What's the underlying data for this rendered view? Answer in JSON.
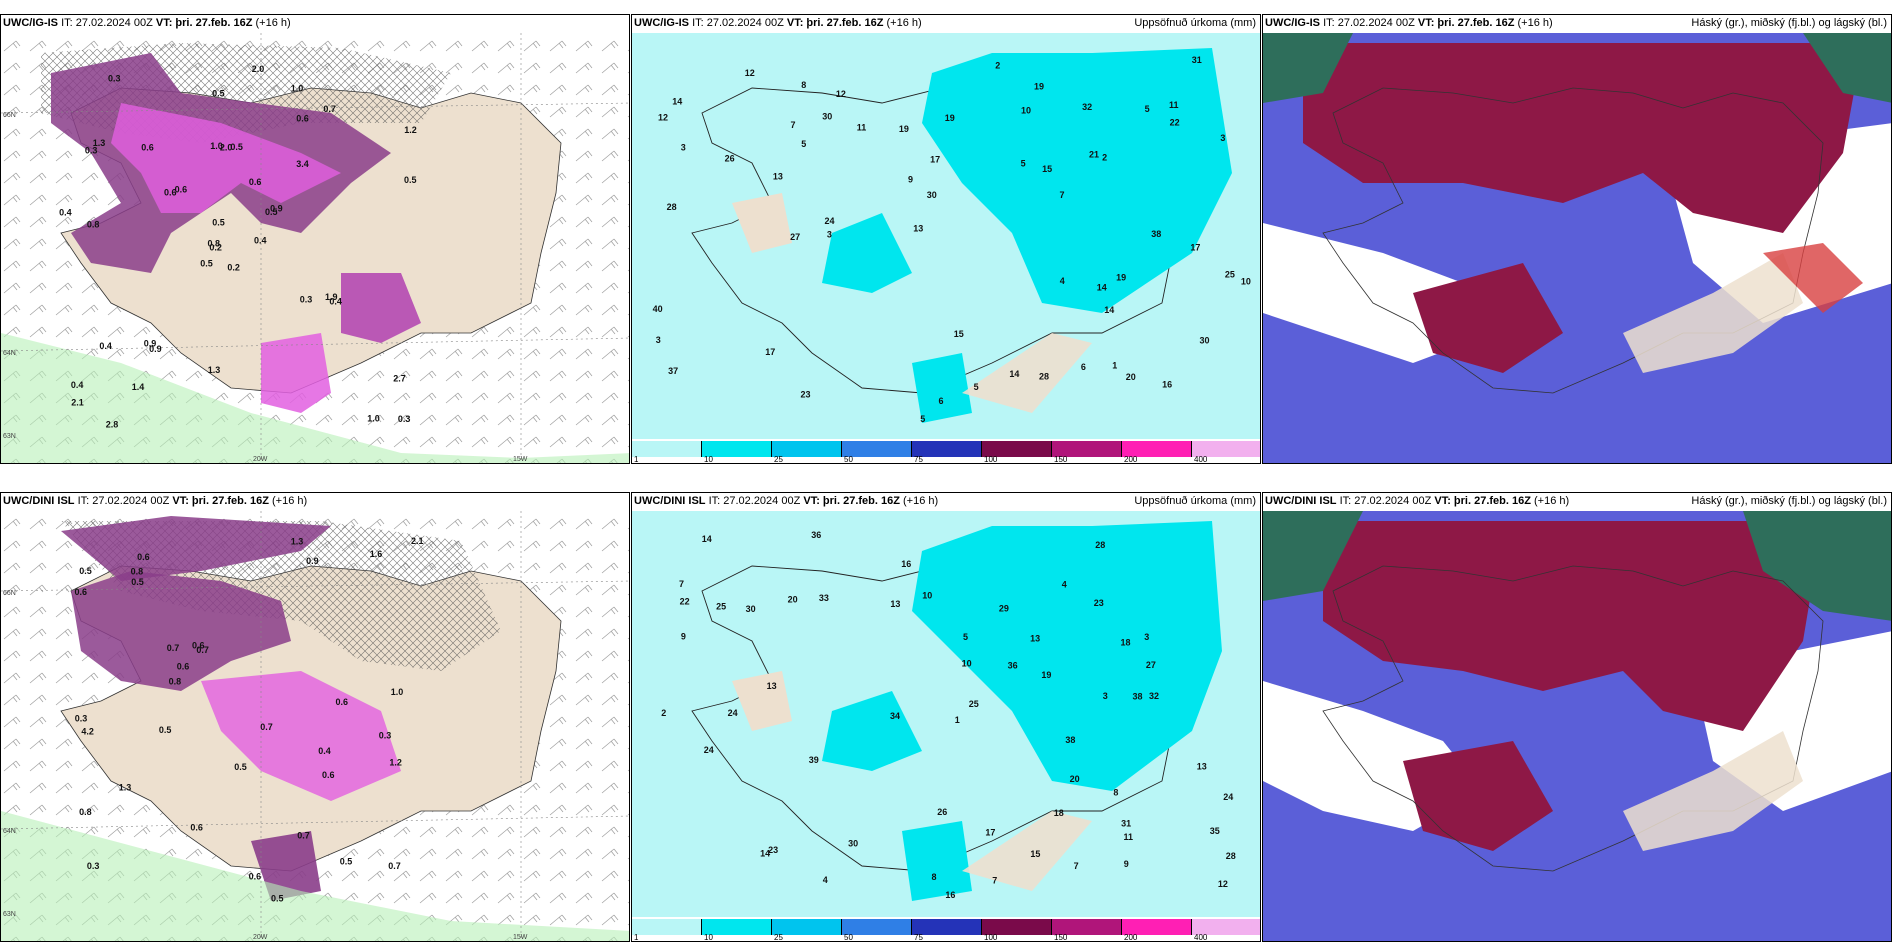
{
  "row1": {
    "left": {
      "model": "UWC/IG-IS",
      "it": "IT: 27.02.2024 00Z",
      "vt": "VT: þri. 27.feb. 16Z",
      "lead": "(+16 h)"
    },
    "mid": {
      "model": "UWC/IG-IS",
      "it": "IT: 27.02.2024 00Z",
      "vt": "VT: þri. 27.feb. 16Z",
      "lead": "(+16 h)",
      "right": "Uppsöfnuð úrkoma (mm)"
    },
    "right": {
      "model": "UWC/IG-IS",
      "it": "IT: 27.02.2024 00Z",
      "vt": "VT: þri. 27.feb. 16Z",
      "lead": "(+16 h)",
      "right": "Háský (gr.), miðský (fj.bl.) og lágský (bl.)"
    }
  },
  "row2": {
    "left": {
      "model": "UWC/DINI ISL",
      "it": "IT: 27.02.2024 00Z",
      "vt": "VT: þri. 27.feb. 16Z",
      "lead": "(+16 h)"
    },
    "mid": {
      "model": "UWC/DINI ISL",
      "it": "IT: 27.02.2024 00Z",
      "vt": "VT: þri. 27.feb. 16Z",
      "lead": "(+16 h)",
      "right": "Uppsöfnuð úrkoma (mm)"
    },
    "right": {
      "model": "UWC/DINI ISL",
      "it": "IT: 27.02.2024 00Z",
      "vt": "VT: þri. 27.feb. 16Z",
      "lead": "(+16 h)",
      "right": "Háský (gr.), miðský (fj.bl.) og lágský (bl.)"
    }
  },
  "axes": {
    "lon_20w": "20W",
    "lon_15w": "15W",
    "lat_66n": "66N",
    "lat_64n": "64N",
    "lat_63n": "63N"
  },
  "legend": {
    "ticks": [
      "1",
      "10",
      "25",
      "50",
      "75",
      "100",
      "150",
      "200",
      "400"
    ],
    "colors": [
      "#b9f6f6",
      "#00e6ee",
      "#00c4ee",
      "#2f7fe6",
      "#2433b8",
      "#7a0a4a",
      "#b0157a",
      "#ff1fb4",
      "#f2b0ee"
    ]
  },
  "labels": {
    "precip_row1": [
      "0.2",
      "0.3",
      "0.2",
      "0.4",
      "0.5",
      "0.9",
      "1.0",
      "0.5",
      "0.6",
      "0.4",
      "0.3",
      "0.3",
      "0.8",
      "1.2",
      "0.5",
      "3.4",
      "2.8",
      "1.0",
      "0.6",
      "0.4",
      "0.6",
      "2.1",
      "1.4",
      "2.0",
      "0.9",
      "0.4",
      "1.3",
      "0.5",
      "0.4",
      "0.3",
      "0.5",
      "0.8",
      "1.3",
      "0.5",
      "0.6",
      "0.7",
      "0.9",
      "1.0",
      "2.7",
      "1.9",
      "2.0",
      "0.6"
    ],
    "precip_row2": [
      "0.4",
      "0.3",
      "0.3",
      "0.6",
      "0.7",
      "0.5",
      "0.8",
      "0.9",
      "0.7",
      "0.5",
      "0.6",
      "0.3",
      "0.5",
      "0.7",
      "0.6",
      "1.0",
      "0.5",
      "0.7",
      "0.6",
      "1.3",
      "2.1",
      "1.6",
      "0.8",
      "1.2",
      "1.3",
      "0.8",
      "0.6",
      "4.2",
      "0.5",
      "0.6",
      "0.6",
      "0.7",
      "0.6",
      "0.5"
    ],
    "accum_row1": [
      "3",
      "5",
      "7",
      "6",
      "5",
      "5",
      "4",
      "3",
      "11",
      "10",
      "25",
      "30",
      "21",
      "17",
      "28",
      "23",
      "24",
      "19",
      "16",
      "14",
      "20",
      "17",
      "30",
      "15",
      "32",
      "13",
      "22",
      "19",
      "12",
      "27",
      "40",
      "28",
      "31",
      "26",
      "14",
      "8",
      "11",
      "10",
      "2",
      "3",
      "2",
      "7",
      "9",
      "1",
      "5",
      "3",
      "12",
      "38",
      "30",
      "19",
      "17",
      "15",
      "13",
      "14",
      "19",
      "12",
      "37",
      "14",
      "6",
      "5"
    ],
    "accum_row2": [
      "5",
      "11",
      "7",
      "3",
      "8",
      "10",
      "7",
      "4",
      "13",
      "24",
      "31",
      "29",
      "38",
      "25",
      "28",
      "23",
      "24",
      "18",
      "17",
      "20",
      "22",
      "26",
      "19",
      "34",
      "27",
      "30",
      "14",
      "12",
      "25",
      "16",
      "14",
      "24",
      "28",
      "32",
      "39",
      "13",
      "36",
      "33",
      "7",
      "9",
      "1",
      "2",
      "3",
      "4",
      "13",
      "16",
      "35",
      "13",
      "30",
      "38",
      "23",
      "36",
      "20",
      "18",
      "15",
      "10",
      "9",
      "8"
    ]
  }
}
